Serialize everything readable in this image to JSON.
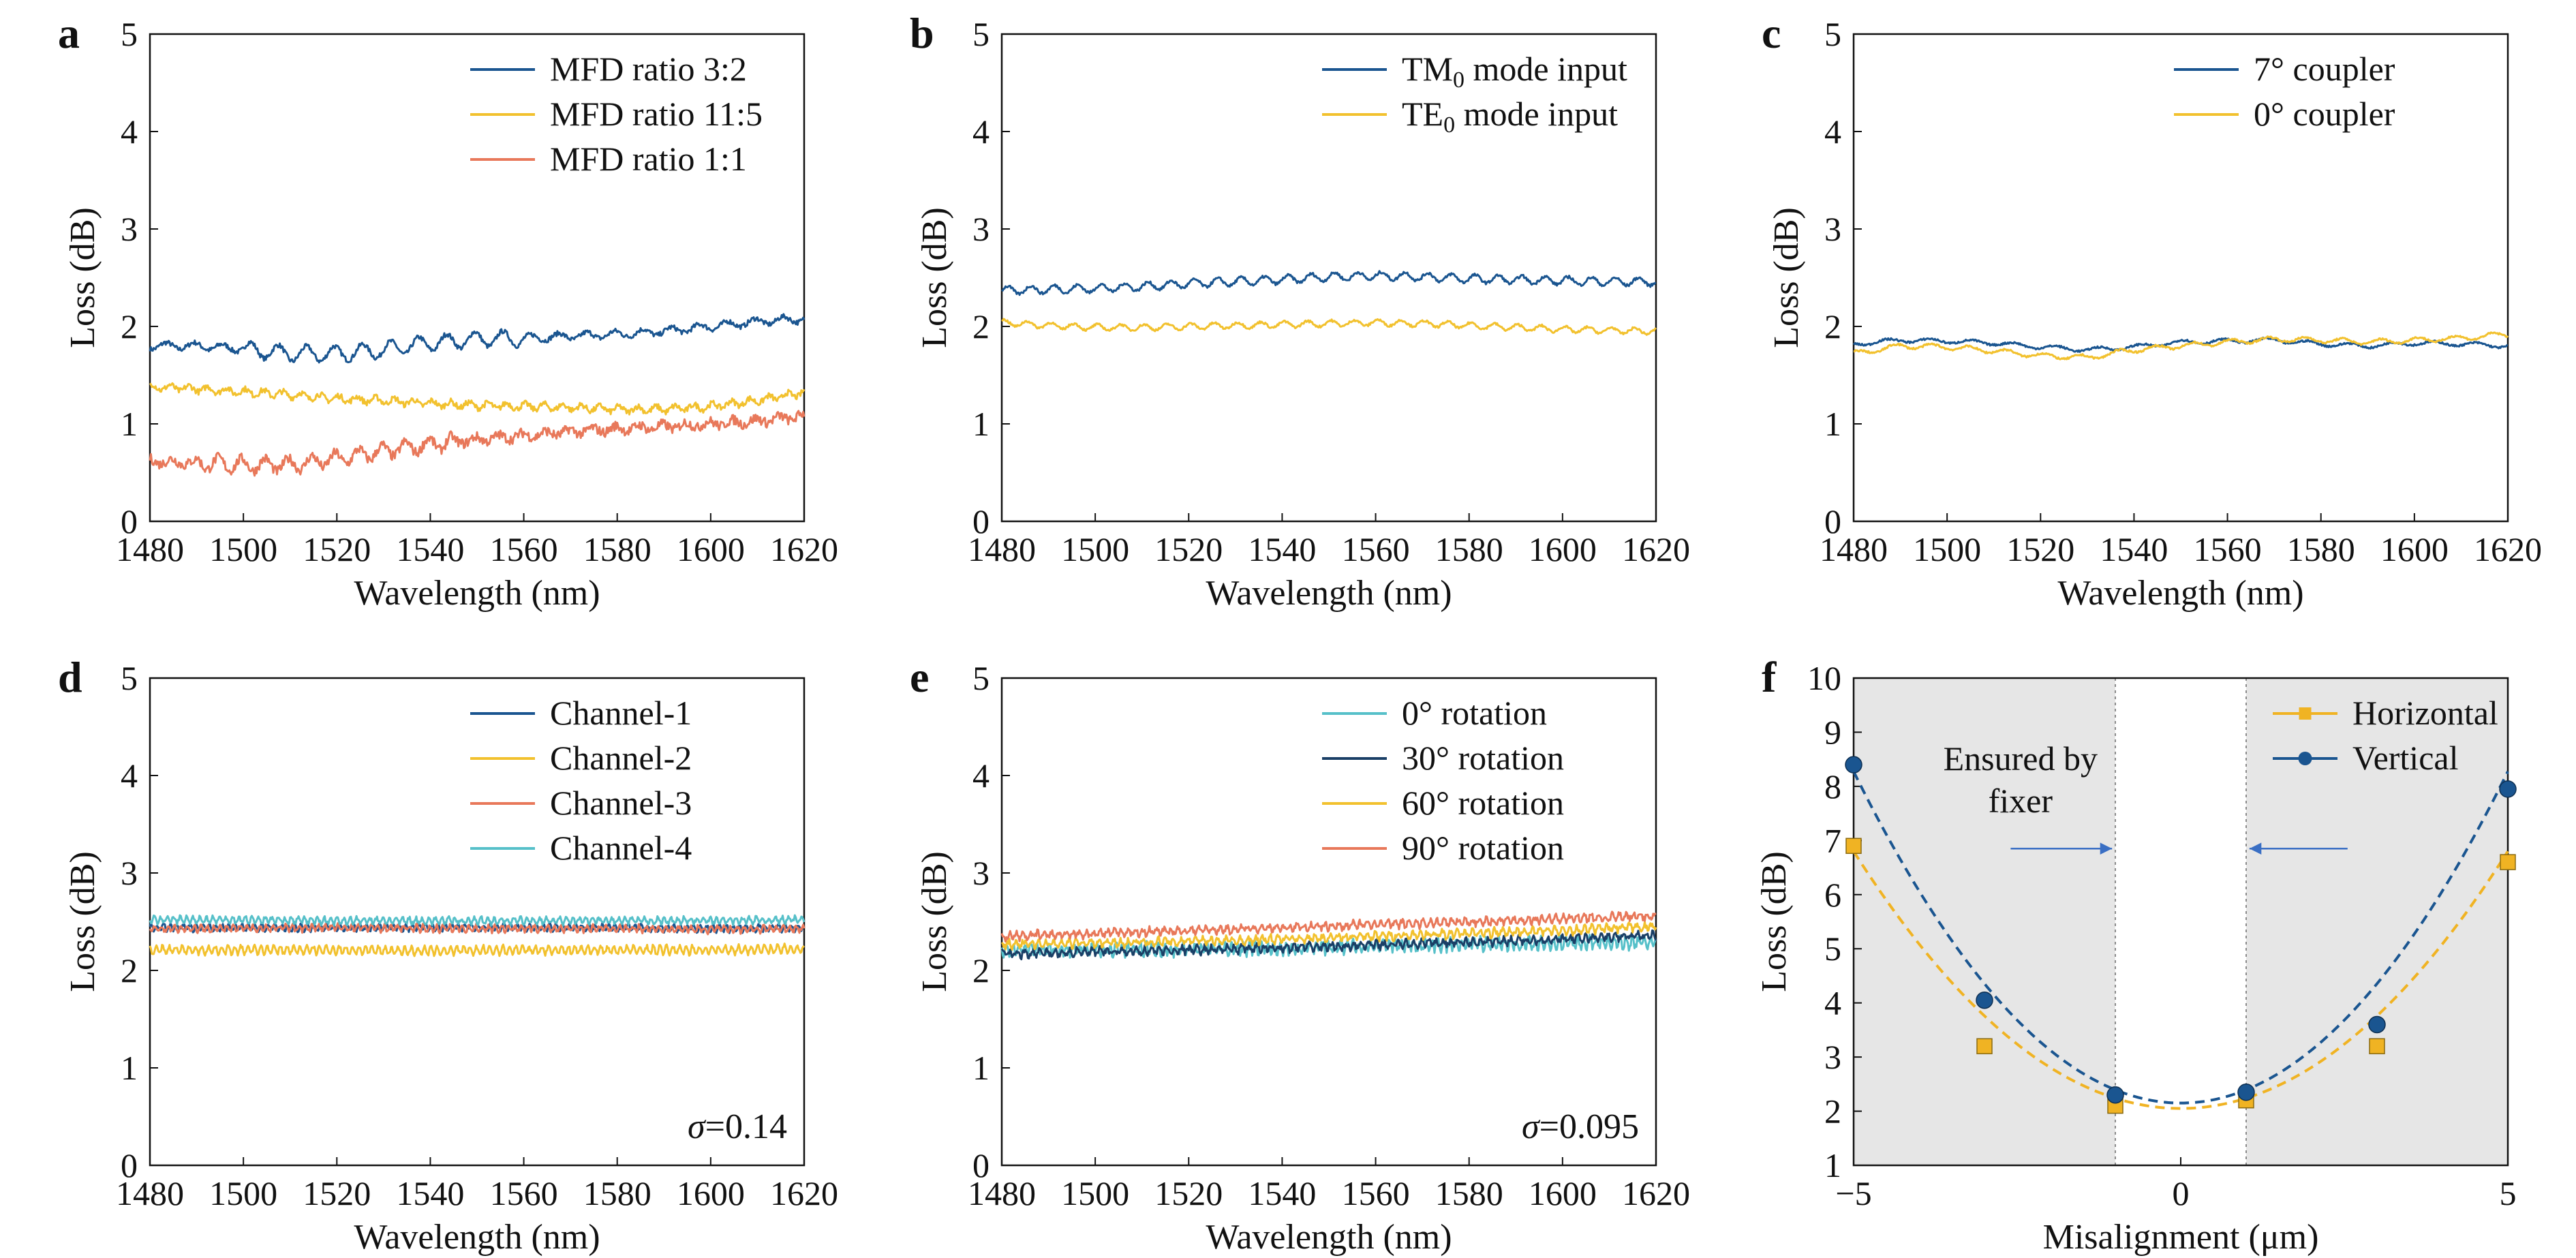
{
  "figure": {
    "panels": [
      {
        "letter": "a",
        "xlabel": "Wavelength (nm)",
        "ylabel": "Loss (dB)"
      },
      {
        "letter": "b",
        "xlabel": "Wavelength (nm)",
        "ylabel": "Loss (dB)"
      },
      {
        "letter": "c",
        "xlabel": "Wavelength (nm)",
        "ylabel": "Loss (dB)"
      },
      {
        "letter": "d",
        "xlabel": "Wavelength (nm)",
        "ylabel": "Loss (dB)",
        "annotation": "=0.14"
      },
      {
        "letter": "e",
        "xlabel": "Wavelength (nm)",
        "ylabel": "Loss (dB)",
        "annotation": "=0.095"
      },
      {
        "letter": "f",
        "xlabel": "Misalignment (μm)",
        "ylabel": "Loss (dB)",
        "annotation": "Ensured by fixer"
      }
    ]
  },
  "chart_data": [
    {
      "type": "line",
      "xlim": [
        1480,
        1620
      ],
      "ylim": [
        0,
        5
      ],
      "xticks": [
        1480,
        1500,
        1520,
        1540,
        1560,
        1580,
        1600,
        1620
      ],
      "yticks": [
        0,
        1,
        2,
        3,
        4,
        5
      ],
      "legend_position": "top-right",
      "series": [
        {
          "name": "MFD ratio 3:2",
          "color": "#1a5590",
          "points": [
            [
              1480,
              1.8
            ],
            [
              1490,
              1.8
            ],
            [
              1500,
              1.77
            ],
            [
              1510,
              1.72
            ],
            [
              1520,
              1.72
            ],
            [
              1530,
              1.76
            ],
            [
              1540,
              1.83
            ],
            [
              1550,
              1.87
            ],
            [
              1560,
              1.88
            ],
            [
              1570,
              1.9
            ],
            [
              1580,
              1.92
            ],
            [
              1590,
              1.95
            ],
            [
              1600,
              2.0
            ],
            [
              1610,
              2.05
            ],
            [
              1620,
              2.08
            ]
          ]
        },
        {
          "name": "MFD ratio 11:5",
          "color": "#f2c12e",
          "points": [
            [
              1480,
              1.38
            ],
            [
              1490,
              1.36
            ],
            [
              1500,
              1.33
            ],
            [
              1510,
              1.3
            ],
            [
              1520,
              1.26
            ],
            [
              1530,
              1.24
            ],
            [
              1540,
              1.21
            ],
            [
              1550,
              1.19
            ],
            [
              1560,
              1.18
            ],
            [
              1570,
              1.17
            ],
            [
              1580,
              1.15
            ],
            [
              1590,
              1.15
            ],
            [
              1600,
              1.18
            ],
            [
              1610,
              1.24
            ],
            [
              1620,
              1.32
            ]
          ]
        },
        {
          "name": "MFD ratio 1:1",
          "color": "#e8785a",
          "points": [
            [
              1480,
              0.62
            ],
            [
              1490,
              0.6
            ],
            [
              1500,
              0.58
            ],
            [
              1510,
              0.58
            ],
            [
              1520,
              0.64
            ],
            [
              1530,
              0.72
            ],
            [
              1540,
              0.79
            ],
            [
              1550,
              0.84
            ],
            [
              1560,
              0.88
            ],
            [
              1570,
              0.92
            ],
            [
              1580,
              0.95
            ],
            [
              1590,
              0.97
            ],
            [
              1600,
              1.0
            ],
            [
              1610,
              1.03
            ],
            [
              1620,
              1.08
            ]
          ]
        }
      ]
    },
    {
      "type": "line",
      "xlim": [
        1480,
        1620
      ],
      "ylim": [
        0,
        5
      ],
      "xticks": [
        1480,
        1500,
        1520,
        1540,
        1560,
        1580,
        1600,
        1620
      ],
      "yticks": [
        0,
        1,
        2,
        3,
        4,
        5
      ],
      "legend_position": "top-right",
      "series": [
        {
          "name": "TM0 mode input",
          "name_base": "TM",
          "name_sub": "0",
          "name_rest": " mode input",
          "color": "#1a5590",
          "points": [
            [
              1480,
              2.37
            ],
            [
              1490,
              2.38
            ],
            [
              1500,
              2.39
            ],
            [
              1510,
              2.41
            ],
            [
              1520,
              2.44
            ],
            [
              1530,
              2.46
            ],
            [
              1540,
              2.48
            ],
            [
              1550,
              2.51
            ],
            [
              1560,
              2.52
            ],
            [
              1570,
              2.51
            ],
            [
              1580,
              2.49
            ],
            [
              1590,
              2.48
            ],
            [
              1600,
              2.47
            ],
            [
              1610,
              2.46
            ],
            [
              1620,
              2.46
            ]
          ]
        },
        {
          "name": "TE0 mode input",
          "name_base": "TE",
          "name_sub": "0",
          "name_rest": " mode input",
          "color": "#f2c12e",
          "points": [
            [
              1480,
              2.04
            ],
            [
              1490,
              2.01
            ],
            [
              1500,
              1.99
            ],
            [
              1510,
              1.99
            ],
            [
              1520,
              2.0
            ],
            [
              1530,
              2.01
            ],
            [
              1540,
              2.02
            ],
            [
              1550,
              2.03
            ],
            [
              1560,
              2.04
            ],
            [
              1570,
              2.03
            ],
            [
              1580,
              2.01
            ],
            [
              1590,
              1.99
            ],
            [
              1600,
              1.97
            ],
            [
              1610,
              1.96
            ],
            [
              1620,
              1.95
            ]
          ]
        }
      ]
    },
    {
      "type": "line",
      "xlim": [
        1480,
        1620
      ],
      "ylim": [
        0,
        5
      ],
      "xticks": [
        1480,
        1500,
        1520,
        1540,
        1560,
        1580,
        1600,
        1620
      ],
      "yticks": [
        0,
        1,
        2,
        3,
        4,
        5
      ],
      "legend_position": "top-right",
      "series": [
        {
          "name": "7° coupler",
          "color": "#1a5590",
          "points": [
            [
              1480,
              1.82
            ],
            [
              1490,
              1.86
            ],
            [
              1500,
              1.85
            ],
            [
              1510,
              1.83
            ],
            [
              1520,
              1.79
            ],
            [
              1530,
              1.76
            ],
            [
              1540,
              1.79
            ],
            [
              1550,
              1.84
            ],
            [
              1560,
              1.85
            ],
            [
              1570,
              1.86
            ],
            [
              1580,
              1.82
            ],
            [
              1590,
              1.8
            ],
            [
              1600,
              1.83
            ],
            [
              1610,
              1.82
            ],
            [
              1620,
              1.8
            ]
          ]
        },
        {
          "name": "0° coupler",
          "color": "#f2c12e",
          "points": [
            [
              1480,
              1.72
            ],
            [
              1490,
              1.8
            ],
            [
              1500,
              1.79
            ],
            [
              1510,
              1.75
            ],
            [
              1520,
              1.7
            ],
            [
              1530,
              1.68
            ],
            [
              1540,
              1.76
            ],
            [
              1550,
              1.8
            ],
            [
              1560,
              1.84
            ],
            [
              1570,
              1.87
            ],
            [
              1580,
              1.86
            ],
            [
              1590,
              1.84
            ],
            [
              1600,
              1.86
            ],
            [
              1610,
              1.88
            ],
            [
              1620,
              1.92
            ]
          ]
        }
      ]
    },
    {
      "type": "line",
      "xlim": [
        1480,
        1620
      ],
      "ylim": [
        0,
        5
      ],
      "xticks": [
        1480,
        1500,
        1520,
        1540,
        1560,
        1580,
        1600,
        1620
      ],
      "yticks": [
        0,
        1,
        2,
        3,
        4,
        5
      ],
      "legend_position": "top-right",
      "annotation_symbol": "σ",
      "annotation_value": "=0.14",
      "series": [
        {
          "name": "Channel-1",
          "color": "#1a5590",
          "points": [
            [
              1480,
              2.44
            ],
            [
              1500,
              2.44
            ],
            [
              1520,
              2.44
            ],
            [
              1540,
              2.44
            ],
            [
              1560,
              2.44
            ],
            [
              1580,
              2.44
            ],
            [
              1600,
              2.43
            ],
            [
              1620,
              2.44
            ]
          ]
        },
        {
          "name": "Channel-2",
          "color": "#f2c12e",
          "points": [
            [
              1480,
              2.21
            ],
            [
              1500,
              2.21
            ],
            [
              1520,
              2.21
            ],
            [
              1540,
              2.2
            ],
            [
              1560,
              2.21
            ],
            [
              1580,
              2.21
            ],
            [
              1600,
              2.21
            ],
            [
              1620,
              2.22
            ]
          ]
        },
        {
          "name": "Channel-3",
          "color": "#e8785a",
          "points": [
            [
              1480,
              2.43
            ],
            [
              1500,
              2.43
            ],
            [
              1520,
              2.44
            ],
            [
              1540,
              2.43
            ],
            [
              1560,
              2.43
            ],
            [
              1580,
              2.43
            ],
            [
              1600,
              2.42
            ],
            [
              1620,
              2.43
            ]
          ]
        },
        {
          "name": "Channel-4",
          "color": "#56c0c9",
          "points": [
            [
              1480,
              2.52
            ],
            [
              1500,
              2.52
            ],
            [
              1520,
              2.51
            ],
            [
              1540,
              2.51
            ],
            [
              1560,
              2.51
            ],
            [
              1580,
              2.51
            ],
            [
              1600,
              2.51
            ],
            [
              1620,
              2.52
            ]
          ]
        }
      ]
    },
    {
      "type": "line",
      "xlim": [
        1480,
        1620
      ],
      "ylim": [
        0,
        5
      ],
      "xticks": [
        1480,
        1500,
        1520,
        1540,
        1560,
        1580,
        1600,
        1620
      ],
      "yticks": [
        0,
        1,
        2,
        3,
        4,
        5
      ],
      "legend_position": "top-right",
      "annotation_symbol": "σ",
      "annotation_value": "=0.095",
      "series": [
        {
          "name": "0° rotation",
          "color": "#56c0c9",
          "points": [
            [
              1480,
              2.22
            ],
            [
              1500,
              2.21
            ],
            [
              1520,
              2.22
            ],
            [
              1540,
              2.23
            ],
            [
              1560,
              2.25
            ],
            [
              1580,
              2.27
            ],
            [
              1600,
              2.28
            ],
            [
              1620,
              2.29
            ]
          ]
        },
        {
          "name": "30° rotation",
          "color": "#1a3f66",
          "points": [
            [
              1480,
              2.17
            ],
            [
              1500,
              2.19
            ],
            [
              1520,
              2.21
            ],
            [
              1540,
              2.23
            ],
            [
              1560,
              2.26
            ],
            [
              1580,
              2.29
            ],
            [
              1600,
              2.32
            ],
            [
              1620,
              2.36
            ]
          ]
        },
        {
          "name": "60° rotation",
          "color": "#f2c12e",
          "points": [
            [
              1480,
              2.27
            ],
            [
              1500,
              2.28
            ],
            [
              1520,
              2.3
            ],
            [
              1540,
              2.32
            ],
            [
              1560,
              2.35
            ],
            [
              1580,
              2.38
            ],
            [
              1600,
              2.41
            ],
            [
              1620,
              2.45
            ]
          ]
        },
        {
          "name": "90° rotation",
          "color": "#e8785a",
          "points": [
            [
              1480,
              2.35
            ],
            [
              1500,
              2.38
            ],
            [
              1520,
              2.41
            ],
            [
              1540,
              2.44
            ],
            [
              1560,
              2.47
            ],
            [
              1580,
              2.5
            ],
            [
              1600,
              2.53
            ],
            [
              1620,
              2.56
            ]
          ]
        }
      ]
    },
    {
      "type": "scatter",
      "xlim": [
        -5,
        5
      ],
      "ylim": [
        1,
        10
      ],
      "xticks": [
        -5,
        0,
        5
      ],
      "xtick_labels": [
        "−5",
        "0",
        "5"
      ],
      "yticks": [
        1,
        2,
        3,
        4,
        5,
        6,
        7,
        8,
        9,
        10
      ],
      "legend_position": "top-right",
      "shaded_regions": [
        [
          -5,
          -1
        ],
        [
          1,
          5
        ]
      ],
      "vertical_lines": [
        -1,
        1
      ],
      "series": [
        {
          "name": "Horizontal",
          "color": "#f0b323",
          "marker": "square",
          "points": [
            [
              -5,
              6.9
            ],
            [
              -3,
              3.2
            ],
            [
              -1,
              2.1
            ],
            [
              1,
              2.2
            ],
            [
              3,
              3.2
            ],
            [
              5,
              6.6
            ]
          ],
          "error": [
            0.1,
            0.12,
            0.12,
            0.12,
            0.12,
            0.12
          ],
          "fit": {
            "center": 0,
            "min": 2.05,
            "k": 0.19
          }
        },
        {
          "name": "Vertical",
          "color": "#1a5590",
          "marker": "circle",
          "points": [
            [
              -5,
              8.4
            ],
            [
              -3,
              4.05
            ],
            [
              -1,
              2.3
            ],
            [
              1,
              2.35
            ],
            [
              3,
              3.6
            ],
            [
              5,
              7.95
            ]
          ],
          "error": [
            0.1,
            0.1,
            0.1,
            0.1,
            0.1,
            0.1
          ],
          "fit": {
            "center": 0,
            "min": 2.15,
            "k": 0.245
          }
        }
      ]
    }
  ]
}
